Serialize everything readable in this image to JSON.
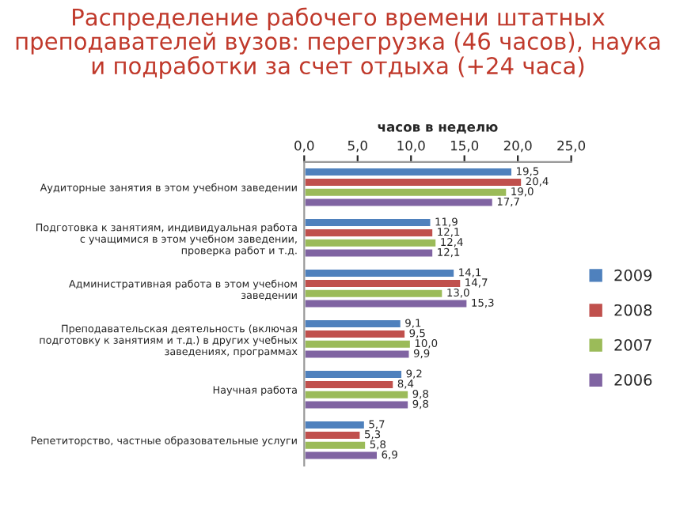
{
  "chart_data": {
    "type": "bar",
    "orientation": "horizontal",
    "title": "Распределение рабочего времени штатных\nпреподавателей вузов: перегрузка (46 часов), наука\nи подработки за счет отдыха (+24 часа)",
    "xlabel": "часов в неделю",
    "categories": [
      "Аудиторные занятия в этом учебном заведении",
      "Подготовка к занятиям, индивидуальная работа\nс учащимися в этом учебном заведении,\nпроверка работ и т.д.",
      "Административная работа в этом учебном\nзаведении",
      "Преподавательская деятельность (включая\nподготовку к занятиям и т.д.) в других учебных\nзаведениях, программах",
      "Научная работа",
      "Репетиторство, частные образовательные услуги"
    ],
    "series": [
      {
        "name": "2009",
        "color": "#4f81bd",
        "values": [
          19.5,
          11.9,
          14.1,
          9.1,
          9.2,
          5.7
        ],
        "value_labels": [
          "19,5",
          "11,9",
          "14,1",
          "9,1",
          "9,2",
          "5,7"
        ]
      },
      {
        "name": "2008",
        "color": "#c0504d",
        "values": [
          20.4,
          12.1,
          14.7,
          9.5,
          8.4,
          5.3
        ],
        "value_labels": [
          "20,4",
          "12,1",
          "14,7",
          "9,5",
          "8,4",
          "5,3"
        ]
      },
      {
        "name": "2007",
        "color": "#9bbb59",
        "values": [
          19.0,
          12.4,
          13.0,
          10.0,
          9.8,
          5.8
        ],
        "value_labels": [
          "19,0",
          "12,4",
          "13,0",
          "10,0",
          "9,8",
          "5,8"
        ]
      },
      {
        "name": "2006",
        "color": "#8064a2",
        "values": [
          17.7,
          12.1,
          15.3,
          9.9,
          9.8,
          6.9
        ],
        "value_labels": [
          "17,7",
          "12,1",
          "15,3",
          "9,9",
          "9,8",
          "6,9"
        ]
      }
    ],
    "xlim": [
      0,
      25
    ],
    "xticks": [
      {
        "value": 0,
        "label": "0,0"
      },
      {
        "value": 5,
        "label": "5,0"
      },
      {
        "value": 10,
        "label": "10,0"
      },
      {
        "value": 15,
        "label": "15,0"
      },
      {
        "value": 20,
        "label": "20,0"
      },
      {
        "value": 25,
        "label": "25,0"
      }
    ],
    "grid": false,
    "legend": "right"
  }
}
